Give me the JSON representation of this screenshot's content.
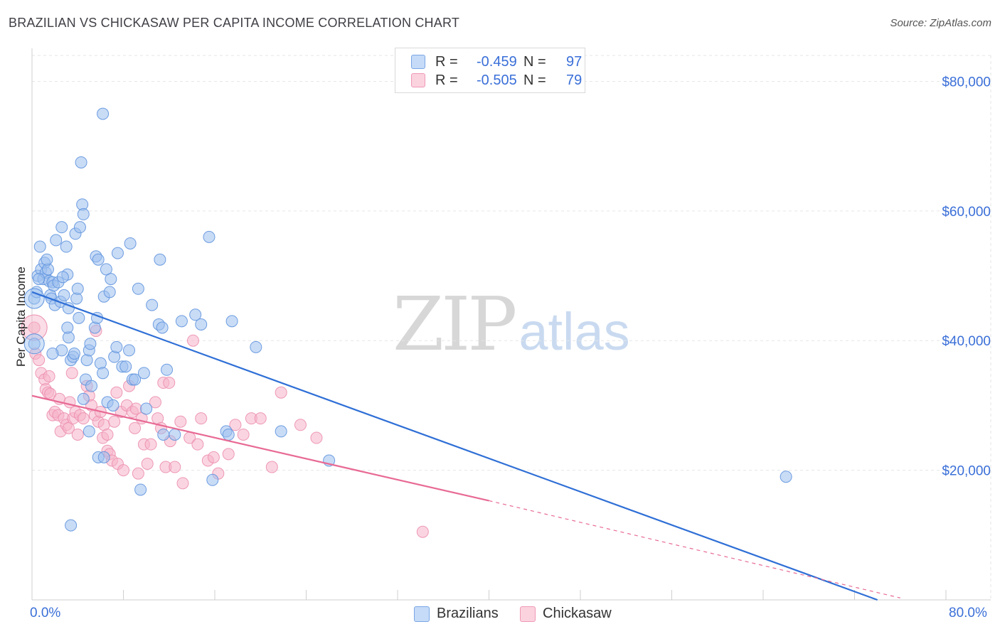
{
  "title": "BRAZILIAN VS CHICKASAW PER CAPITA INCOME CORRELATION CHART",
  "source": "Source: ZipAtlas.com",
  "watermark": {
    "zip": "ZIP",
    "atlas": "atlas"
  },
  "legend": {
    "rows": [
      {
        "name": "Brazilians",
        "r_label": "R =",
        "r_value": "-0.459",
        "n_label": "N =",
        "n_value": "97",
        "color": "#9cc0ef"
      },
      {
        "name": "Chickasaw",
        "r_label": "R =",
        "r_value": "-0.505",
        "n_label": "N =",
        "n_value": "79",
        "color": "#f5b3c8"
      }
    ]
  },
  "bottom_legend": [
    {
      "label": "Brazilians",
      "color": "#9cc0ef"
    },
    {
      "label": "Chickasaw",
      "color": "#f5b3c8"
    }
  ],
  "colors": {
    "blue_point": "#9cc0ef",
    "blue_line": "#2f6fd6",
    "pink_point": "#f5b3c8",
    "pink_line": "#e86a94",
    "axis_text": "#3a6fd8",
    "grid": "#e6e6e6"
  },
  "chart_data": {
    "type": "scatter",
    "title": "BRAZILIAN VS CHICKASAW PER CAPITA INCOME CORRELATION CHART",
    "xlabel": "",
    "ylabel": "Per Capita Income",
    "xlim": [
      0,
      80
    ],
    "ylim": [
      0,
      84000
    ],
    "x_tick_labels": [
      "0.0%",
      "80.0%"
    ],
    "y_ticks": [
      20000,
      40000,
      60000,
      80000
    ],
    "y_tick_labels": [
      "$20,000",
      "$40,000",
      "$60,000",
      "$80,000"
    ],
    "series": [
      {
        "name": "Brazilians",
        "points": [
          [
            0.2,
            46500
          ],
          [
            0.2,
            39500
          ],
          [
            0.5,
            50000
          ],
          [
            0.7,
            54500
          ],
          [
            0.8,
            51000
          ],
          [
            1.0,
            49500
          ],
          [
            1.1,
            52000
          ],
          [
            1.2,
            50500
          ],
          [
            1.4,
            51000
          ],
          [
            1.5,
            49200
          ],
          [
            1.6,
            47000
          ],
          [
            1.7,
            46500
          ],
          [
            1.8,
            49000
          ],
          [
            1.9,
            48500
          ],
          [
            2.0,
            45500
          ],
          [
            2.1,
            55500
          ],
          [
            2.3,
            49000
          ],
          [
            2.5,
            46000
          ],
          [
            2.6,
            57500
          ],
          [
            2.8,
            47000
          ],
          [
            3.0,
            54500
          ],
          [
            3.1,
            50200
          ],
          [
            3.2,
            45000
          ],
          [
            2.6,
            38500
          ],
          [
            3.2,
            40500
          ],
          [
            3.4,
            37000
          ],
          [
            3.6,
            37500
          ],
          [
            3.8,
            56500
          ],
          [
            3.9,
            46500
          ],
          [
            4.0,
            48000
          ],
          [
            4.1,
            43500
          ],
          [
            4.2,
            57500
          ],
          [
            4.4,
            61000
          ],
          [
            4.5,
            59500
          ],
          [
            4.5,
            31000
          ],
          [
            4.7,
            34000
          ],
          [
            4.8,
            37000
          ],
          [
            5.0,
            38500
          ],
          [
            5.1,
            39500
          ],
          [
            5.2,
            33000
          ],
          [
            5.5,
            42000
          ],
          [
            5.6,
            53000
          ],
          [
            5.7,
            43500
          ],
          [
            5.8,
            52500
          ],
          [
            6.0,
            36500
          ],
          [
            6.2,
            35000
          ],
          [
            6.2,
            75000
          ],
          [
            6.3,
            46800
          ],
          [
            6.5,
            51000
          ],
          [
            6.6,
            30500
          ],
          [
            6.8,
            47500
          ],
          [
            6.9,
            49500
          ],
          [
            7.1,
            30000
          ],
          [
            7.2,
            37500
          ],
          [
            7.4,
            39000
          ],
          [
            7.5,
            53500
          ],
          [
            5.0,
            26000
          ],
          [
            5.8,
            22000
          ],
          [
            6.3,
            22000
          ],
          [
            7.9,
            36000
          ],
          [
            8.2,
            36000
          ],
          [
            8.5,
            38500
          ],
          [
            8.6,
            55000
          ],
          [
            8.8,
            34000
          ],
          [
            9.0,
            34000
          ],
          [
            9.3,
            48000
          ],
          [
            9.5,
            17000
          ],
          [
            9.8,
            35000
          ],
          [
            10.0,
            29500
          ],
          [
            10.5,
            45500
          ],
          [
            11.1,
            42500
          ],
          [
            11.2,
            52500
          ],
          [
            11.4,
            42000
          ],
          [
            11.5,
            25500
          ],
          [
            11.8,
            35500
          ],
          [
            12.5,
            25500
          ],
          [
            13.1,
            43000
          ],
          [
            14.3,
            44000
          ],
          [
            14.8,
            42500
          ],
          [
            15.5,
            56000
          ],
          [
            15.8,
            18500
          ],
          [
            17.0,
            26000
          ],
          [
            17.2,
            25500
          ],
          [
            17.5,
            43000
          ],
          [
            19.6,
            39000
          ],
          [
            21.8,
            26000
          ],
          [
            26.0,
            21500
          ],
          [
            66.0,
            19000
          ],
          [
            0.4,
            47500
          ],
          [
            0.6,
            49500
          ],
          [
            1.3,
            52500
          ],
          [
            1.8,
            38000
          ],
          [
            3.4,
            11500
          ],
          [
            4.3,
            67500
          ],
          [
            2.7,
            49800
          ],
          [
            3.7,
            38000
          ],
          [
            3.1,
            42000
          ]
        ]
      },
      {
        "name": "Chickasaw",
        "points": [
          [
            0.2,
            42000
          ],
          [
            0.3,
            38000
          ],
          [
            0.6,
            37000
          ],
          [
            0.8,
            35000
          ],
          [
            1.1,
            34000
          ],
          [
            1.2,
            32500
          ],
          [
            1.4,
            32000
          ],
          [
            1.6,
            31800
          ],
          [
            1.8,
            28500
          ],
          [
            2.0,
            29000
          ],
          [
            2.3,
            28500
          ],
          [
            2.5,
            26000
          ],
          [
            2.8,
            28000
          ],
          [
            3.0,
            27000
          ],
          [
            3.2,
            26500
          ],
          [
            3.5,
            35000
          ],
          [
            3.6,
            28000
          ],
          [
            3.8,
            29000
          ],
          [
            4.0,
            25500
          ],
          [
            4.2,
            28500
          ],
          [
            4.5,
            28000
          ],
          [
            4.8,
            33000
          ],
          [
            5.0,
            31500
          ],
          [
            5.2,
            30000
          ],
          [
            5.5,
            28500
          ],
          [
            5.8,
            27500
          ],
          [
            6.0,
            29000
          ],
          [
            6.2,
            25000
          ],
          [
            6.3,
            27000
          ],
          [
            6.6,
            23000
          ],
          [
            6.8,
            22500
          ],
          [
            7.0,
            21500
          ],
          [
            7.2,
            27500
          ],
          [
            7.4,
            32000
          ],
          [
            7.5,
            21000
          ],
          [
            7.8,
            29000
          ],
          [
            8.0,
            20000
          ],
          [
            8.3,
            30000
          ],
          [
            8.5,
            33000
          ],
          [
            8.8,
            29000
          ],
          [
            9.0,
            26500
          ],
          [
            9.3,
            19500
          ],
          [
            9.6,
            28000
          ],
          [
            9.8,
            24000
          ],
          [
            10.1,
            21000
          ],
          [
            10.4,
            24000
          ],
          [
            10.8,
            30500
          ],
          [
            11.0,
            28000
          ],
          [
            11.3,
            26500
          ],
          [
            11.5,
            33500
          ],
          [
            11.7,
            20500
          ],
          [
            12.1,
            24500
          ],
          [
            12.5,
            20500
          ],
          [
            13.0,
            27500
          ],
          [
            13.2,
            18000
          ],
          [
            13.8,
            25000
          ],
          [
            14.1,
            40000
          ],
          [
            14.5,
            24000
          ],
          [
            14.8,
            28000
          ],
          [
            15.4,
            21500
          ],
          [
            15.9,
            22000
          ],
          [
            16.3,
            19500
          ],
          [
            17.2,
            22500
          ],
          [
            17.8,
            27000
          ],
          [
            18.5,
            25500
          ],
          [
            19.2,
            28000
          ],
          [
            20.0,
            28000
          ],
          [
            21.0,
            20500
          ],
          [
            21.8,
            32000
          ],
          [
            23.5,
            27000
          ],
          [
            24.9,
            25000
          ],
          [
            34.2,
            10500
          ],
          [
            1.5,
            34500
          ],
          [
            2.4,
            31000
          ],
          [
            3.3,
            30500
          ],
          [
            5.6,
            41500
          ],
          [
            6.6,
            25500
          ],
          [
            9.1,
            29500
          ],
          [
            12.0,
            33500
          ]
        ]
      }
    ],
    "trend_lines": [
      {
        "name": "Brazilians",
        "x": [
          0,
          74
        ],
        "y": [
          47500,
          0
        ]
      },
      {
        "name": "Chickasaw",
        "x": [
          0,
          40
        ],
        "y": [
          31500,
          15300
        ],
        "dashed_to": [
          76,
          300
        ]
      }
    ]
  }
}
